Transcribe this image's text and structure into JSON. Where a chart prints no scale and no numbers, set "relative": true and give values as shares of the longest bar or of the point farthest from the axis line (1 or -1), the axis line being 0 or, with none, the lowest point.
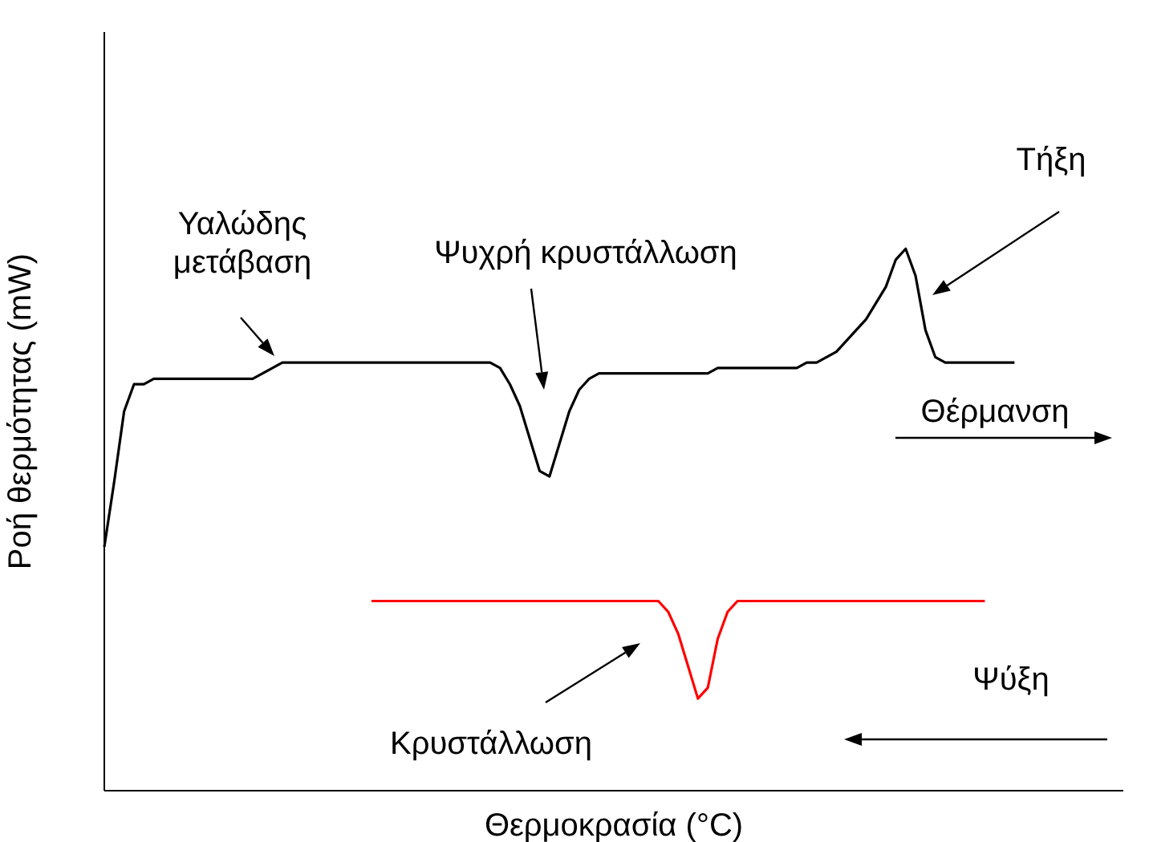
{
  "chart_data": {
    "type": "line",
    "relative": true,
    "xlabel": "Θερμοκρασία (°C)",
    "ylabel": "Ροή θερμότητας (mW)",
    "categories": [
      null,
      null,
      null,
      null,
      null,
      null,
      null,
      null,
      null,
      null,
      null,
      null,
      null,
      null,
      null,
      null,
      null,
      null,
      null,
      null,
      null,
      null,
      null,
      null,
      null,
      null,
      null,
      null,
      null,
      null,
      null,
      null,
      null,
      null,
      null,
      null,
      null,
      null,
      null,
      null,
      null,
      null,
      null,
      null,
      null,
      null,
      null,
      null,
      null,
      null,
      null,
      null,
      null,
      null,
      null,
      null,
      null,
      null,
      null,
      null,
      null,
      null,
      null,
      null,
      null,
      null,
      null,
      null,
      null,
      null,
      null,
      null,
      null,
      null,
      null,
      null,
      null,
      null,
      null,
      null,
      null,
      null,
      null,
      null,
      null,
      null,
      null,
      null,
      null,
      null,
      null,
      null,
      null,
      null,
      null,
      null,
      null,
      null,
      null,
      null,
      null,
      null,
      null,
      null
    ],
    "series": [
      {
        "color": "#000000",
        "values": [
          0.45,
          0.57,
          0.7,
          0.75,
          0.75,
          0.76,
          0.76,
          0.76,
          0.76,
          0.76,
          0.76,
          0.76,
          0.76,
          0.76,
          0.76,
          0.76,
          0.77,
          0.78,
          0.79,
          0.79,
          0.79,
          0.79,
          0.79,
          0.79,
          0.79,
          0.79,
          0.79,
          0.79,
          0.79,
          0.79,
          0.79,
          0.79,
          0.79,
          0.79,
          0.79,
          0.79,
          0.79,
          0.79,
          0.79,
          0.79,
          0.78,
          0.75,
          0.71,
          0.65,
          0.59,
          0.58,
          0.64,
          0.7,
          0.74,
          0.76,
          0.77,
          0.77,
          0.77,
          0.77,
          0.77,
          0.77,
          0.77,
          0.77,
          0.77,
          0.77,
          0.77,
          0.77,
          0.78,
          0.78,
          0.78,
          0.78,
          0.78,
          0.78,
          0.78,
          0.78,
          0.78,
          0.79,
          0.79,
          0.8,
          0.81,
          0.83,
          0.85,
          0.87,
          0.9,
          0.93,
          0.98,
          1,
          0.95,
          0.85,
          0.8,
          0.79,
          0.79,
          0.79,
          0.79,
          0.79,
          0.79,
          0.79,
          0.79,
          null,
          null,
          null,
          null,
          null,
          null,
          null,
          null,
          null,
          null,
          null
        ]
      },
      {
        "color": "#ff0000",
        "values": [
          null,
          null,
          null,
          null,
          null,
          null,
          null,
          null,
          null,
          null,
          null,
          null,
          null,
          null,
          null,
          null,
          null,
          null,
          null,
          null,
          null,
          null,
          null,
          null,
          null,
          null,
          null,
          0.35,
          0.35,
          0.35,
          0.35,
          0.35,
          0.35,
          0.35,
          0.35,
          0.35,
          0.35,
          0.35,
          0.35,
          0.35,
          0.35,
          0.35,
          0.35,
          0.35,
          0.35,
          0.35,
          0.35,
          0.35,
          0.35,
          0.35,
          0.35,
          0.35,
          0.35,
          0.35,
          0.35,
          0.35,
          0.35,
          0.33,
          0.29,
          0.23,
          0.17,
          0.19,
          0.28,
          0.33,
          0.35,
          0.35,
          0.35,
          0.35,
          0.35,
          0.35,
          0.35,
          0.35,
          0.35,
          0.35,
          0.35,
          0.35,
          0.35,
          0.35,
          0.35,
          0.35,
          0.35,
          0.35,
          0.35,
          0.35,
          0.35,
          0.35,
          0.35,
          0.35,
          0.35,
          0.35,
          null,
          null,
          null,
          null,
          null,
          null,
          null,
          null,
          null,
          null,
          null,
          null,
          null,
          null
        ]
      }
    ],
    "annotations": [
      "Υαλώδης μετάβαση",
      "Ψυχρή κρυστάλλωση",
      "Τήξη",
      "Θέρμανση",
      "Ψύξη",
      "Κρυστάλλωση"
    ]
  }
}
